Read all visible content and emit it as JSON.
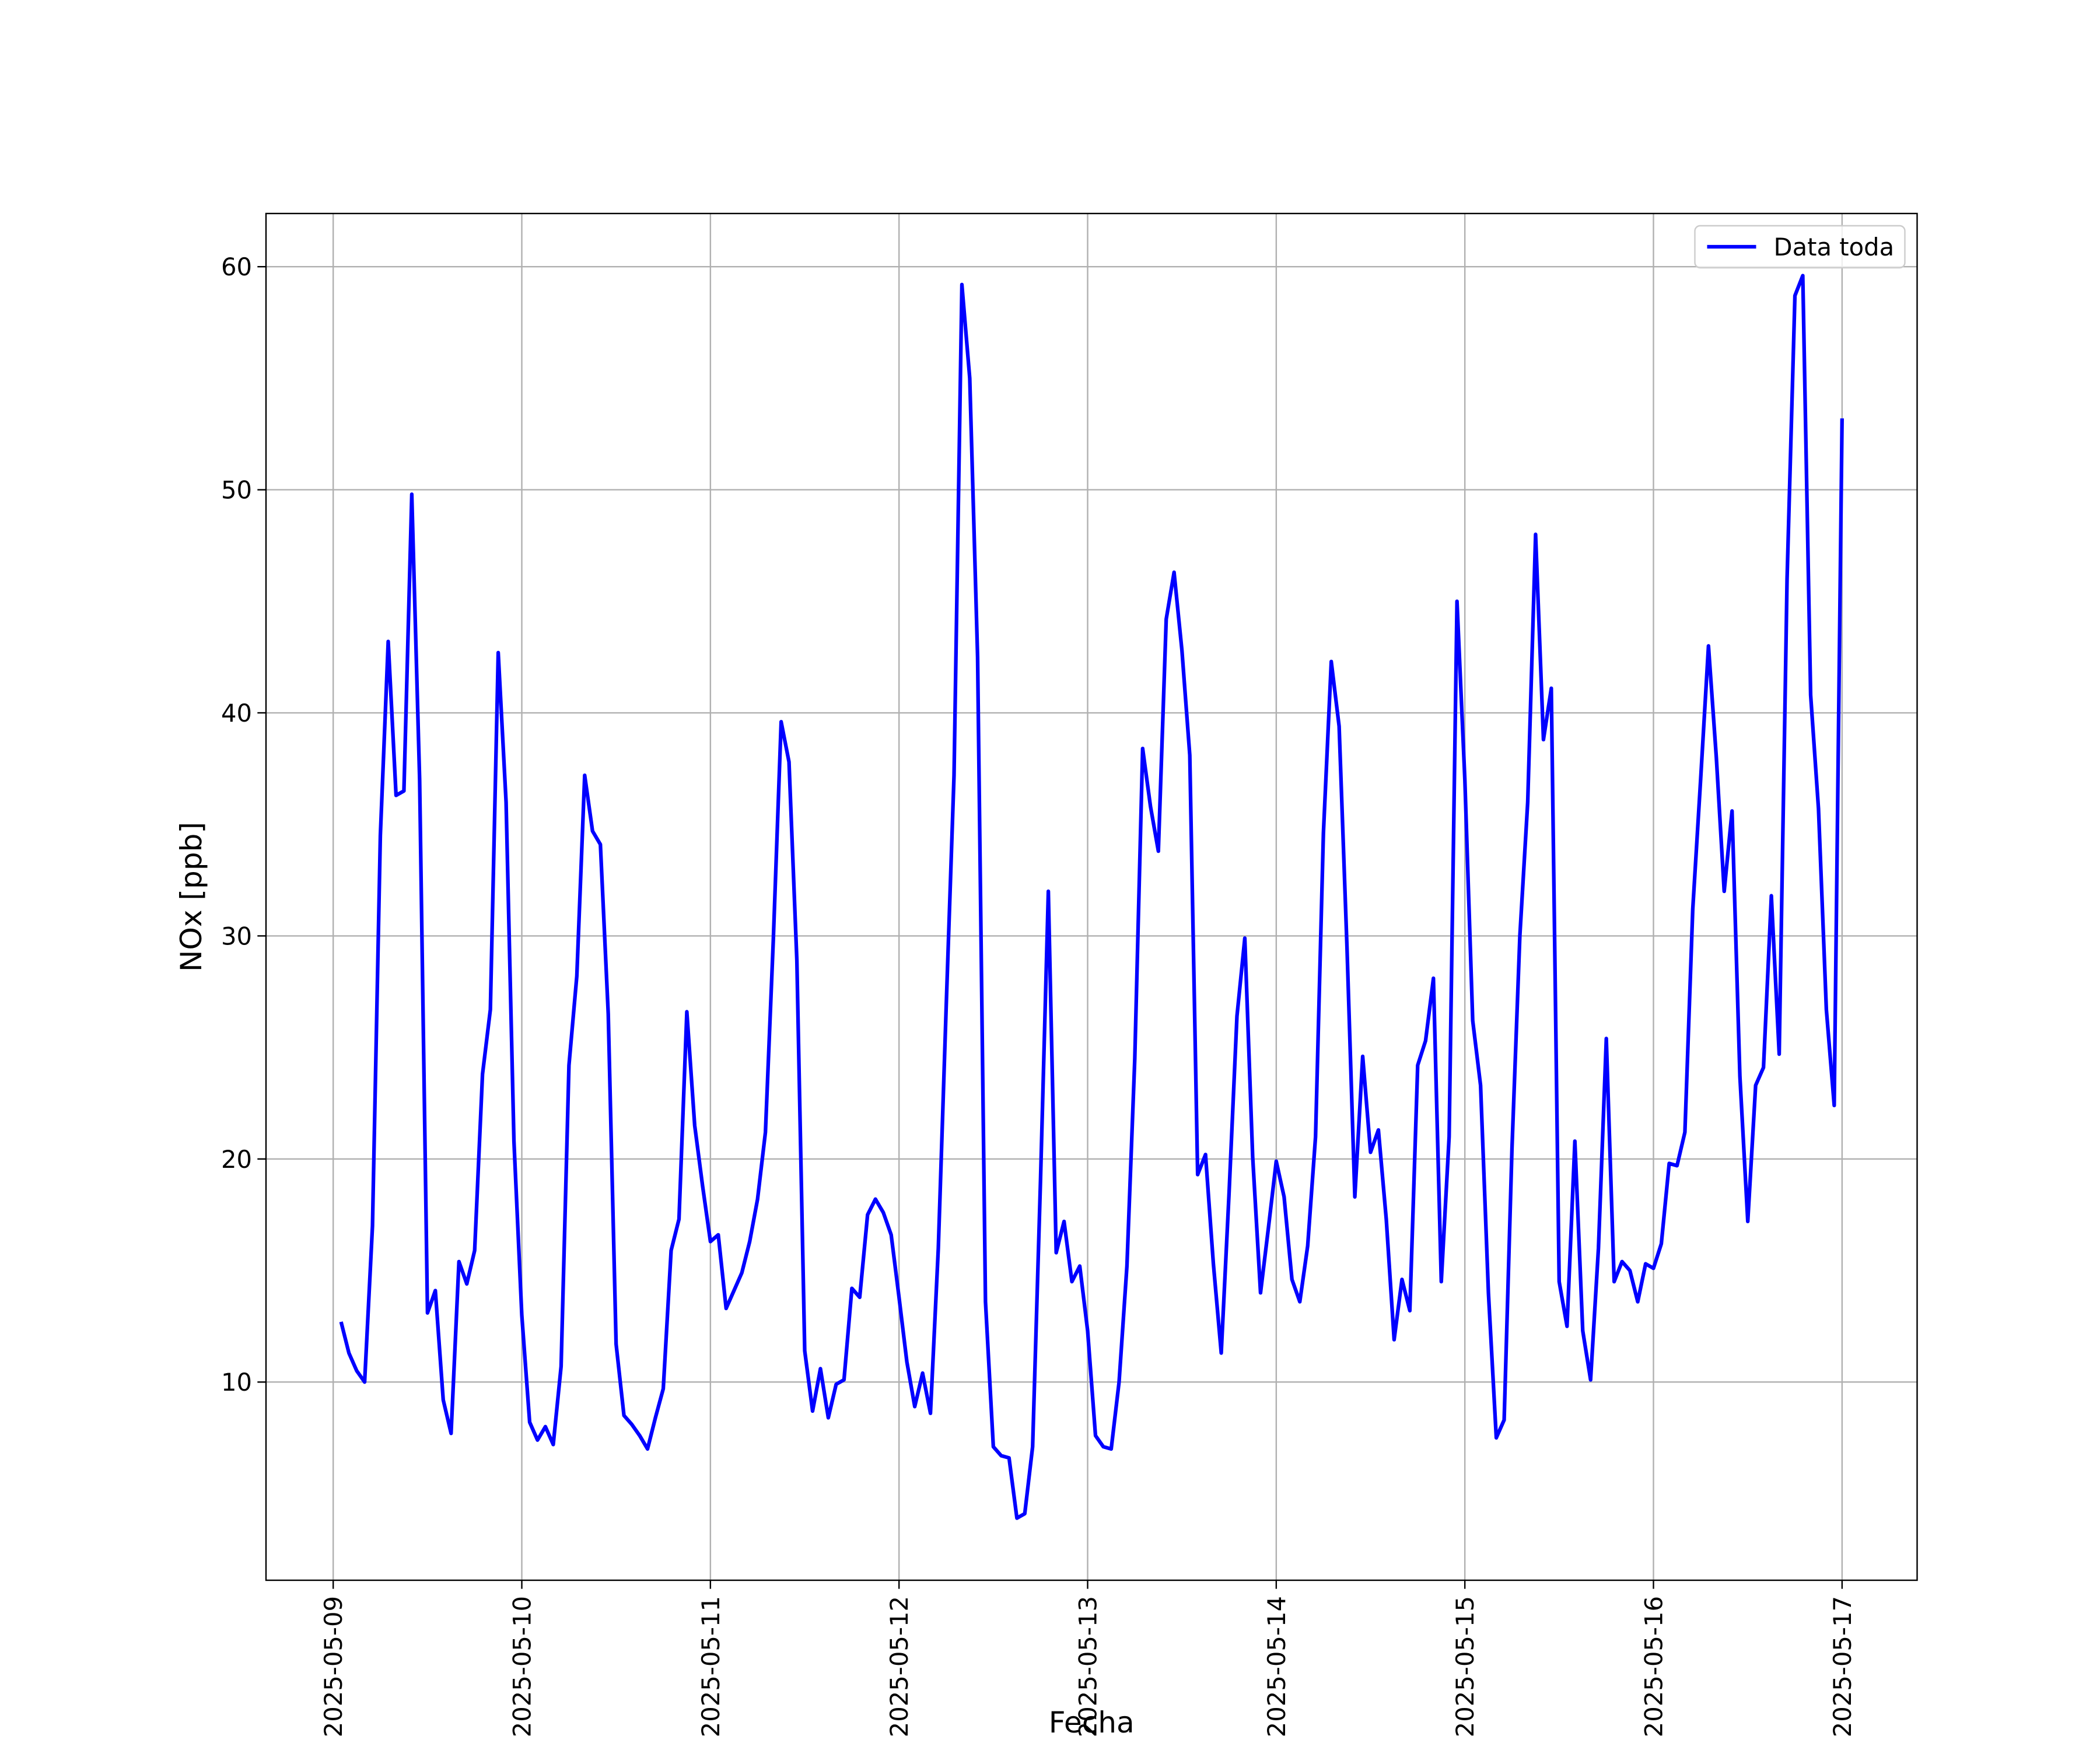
{
  "chart_data": {
    "type": "line",
    "x_label": "Fecha",
    "y_label": "NOx [ppb]",
    "x": [
      "2025-05-09 01:00",
      "2025-05-09 02:00",
      "2025-05-09 03:00",
      "2025-05-09 04:00",
      "2025-05-09 05:00",
      "2025-05-09 06:00",
      "2025-05-09 07:00",
      "2025-05-09 08:00",
      "2025-05-09 09:00",
      "2025-05-09 10:00",
      "2025-05-09 11:00",
      "2025-05-09 12:00",
      "2025-05-09 13:00",
      "2025-05-09 14:00",
      "2025-05-09 15:00",
      "2025-05-09 16:00",
      "2025-05-09 17:00",
      "2025-05-09 18:00",
      "2025-05-09 19:00",
      "2025-05-09 20:00",
      "2025-05-09 21:00",
      "2025-05-09 22:00",
      "2025-05-09 23:00",
      "2025-05-10 00:00",
      "2025-05-10 01:00",
      "2025-05-10 02:00",
      "2025-05-10 03:00",
      "2025-05-10 04:00",
      "2025-05-10 05:00",
      "2025-05-10 06:00",
      "2025-05-10 07:00",
      "2025-05-10 08:00",
      "2025-05-10 09:00",
      "2025-05-10 10:00",
      "2025-05-10 11:00",
      "2025-05-10 12:00",
      "2025-05-10 13:00",
      "2025-05-10 14:00",
      "2025-05-10 15:00",
      "2025-05-10 16:00",
      "2025-05-10 17:00",
      "2025-05-10 18:00",
      "2025-05-10 19:00",
      "2025-05-10 20:00",
      "2025-05-10 21:00",
      "2025-05-10 22:00",
      "2025-05-10 23:00",
      "2025-05-11 00:00",
      "2025-05-11 01:00",
      "2025-05-11 02:00",
      "2025-05-11 03:00",
      "2025-05-11 04:00",
      "2025-05-11 05:00",
      "2025-05-11 06:00",
      "2025-05-11 07:00",
      "2025-05-11 08:00",
      "2025-05-11 09:00",
      "2025-05-11 10:00",
      "2025-05-11 11:00",
      "2025-05-11 12:00",
      "2025-05-11 13:00",
      "2025-05-11 14:00",
      "2025-05-11 15:00",
      "2025-05-11 16:00",
      "2025-05-11 17:00",
      "2025-05-11 18:00",
      "2025-05-11 19:00",
      "2025-05-11 20:00",
      "2025-05-11 21:00",
      "2025-05-11 22:00",
      "2025-05-11 23:00",
      "2025-05-12 00:00",
      "2025-05-12 01:00",
      "2025-05-12 02:00",
      "2025-05-12 03:00",
      "2025-05-12 04:00",
      "2025-05-12 05:00",
      "2025-05-12 06:00",
      "2025-05-12 07:00",
      "2025-05-12 08:00",
      "2025-05-12 09:00",
      "2025-05-12 10:00",
      "2025-05-12 11:00",
      "2025-05-12 12:00",
      "2025-05-12 13:00",
      "2025-05-12 14:00",
      "2025-05-12 15:00",
      "2025-05-12 16:00",
      "2025-05-12 17:00",
      "2025-05-12 18:00",
      "2025-05-12 19:00",
      "2025-05-12 20:00",
      "2025-05-12 21:00",
      "2025-05-12 22:00",
      "2025-05-12 23:00",
      "2025-05-13 00:00",
      "2025-05-13 01:00",
      "2025-05-13 02:00",
      "2025-05-13 03:00",
      "2025-05-13 04:00",
      "2025-05-13 05:00",
      "2025-05-13 06:00",
      "2025-05-13 07:00",
      "2025-05-13 08:00",
      "2025-05-13 09:00",
      "2025-05-13 10:00",
      "2025-05-13 11:00",
      "2025-05-13 12:00",
      "2025-05-13 13:00",
      "2025-05-13 14:00",
      "2025-05-13 15:00",
      "2025-05-13 16:00",
      "2025-05-13 17:00",
      "2025-05-13 18:00",
      "2025-05-13 19:00",
      "2025-05-13 20:00",
      "2025-05-13 21:00",
      "2025-05-13 22:00",
      "2025-05-13 23:00",
      "2025-05-14 00:00",
      "2025-05-14 01:00",
      "2025-05-14 02:00",
      "2025-05-14 03:00",
      "2025-05-14 04:00",
      "2025-05-14 05:00",
      "2025-05-14 06:00",
      "2025-05-14 07:00",
      "2025-05-14 08:00",
      "2025-05-14 09:00",
      "2025-05-14 10:00",
      "2025-05-14 11:00",
      "2025-05-14 12:00",
      "2025-05-14 13:00",
      "2025-05-14 14:00",
      "2025-05-14 15:00",
      "2025-05-14 16:00",
      "2025-05-14 17:00",
      "2025-05-14 18:00",
      "2025-05-14 19:00",
      "2025-05-14 20:00",
      "2025-05-14 21:00",
      "2025-05-14 22:00",
      "2025-05-14 23:00",
      "2025-05-15 00:00",
      "2025-05-15 01:00",
      "2025-05-15 02:00",
      "2025-05-15 03:00",
      "2025-05-15 04:00",
      "2025-05-15 05:00",
      "2025-05-15 06:00",
      "2025-05-15 07:00",
      "2025-05-15 08:00",
      "2025-05-15 09:00",
      "2025-05-15 10:00",
      "2025-05-15 11:00",
      "2025-05-15 12:00",
      "2025-05-15 13:00",
      "2025-05-15 14:00",
      "2025-05-15 15:00",
      "2025-05-15 16:00",
      "2025-05-15 17:00",
      "2025-05-15 18:00",
      "2025-05-15 19:00",
      "2025-05-15 20:00",
      "2025-05-15 21:00",
      "2025-05-15 22:00",
      "2025-05-15 23:00",
      "2025-05-16 00:00",
      "2025-05-16 01:00",
      "2025-05-16 02:00",
      "2025-05-16 03:00",
      "2025-05-16 04:00",
      "2025-05-16 05:00",
      "2025-05-16 06:00",
      "2025-05-16 07:00",
      "2025-05-16 08:00",
      "2025-05-16 09:00",
      "2025-05-16 10:00",
      "2025-05-16 11:00",
      "2025-05-16 12:00",
      "2025-05-16 13:00",
      "2025-05-16 14:00",
      "2025-05-16 15:00",
      "2025-05-16 16:00",
      "2025-05-16 17:00",
      "2025-05-16 18:00",
      "2025-05-16 19:00",
      "2025-05-16 20:00",
      "2025-05-16 21:00",
      "2025-05-16 22:00",
      "2025-05-16 23:00",
      "2025-05-17 00:00"
    ],
    "series": [
      {
        "name": "Data toda",
        "color": "#0000ff",
        "values": [
          12.7,
          11.3,
          10.5,
          10.0,
          17,
          34.5,
          43.2,
          36.3,
          36.5,
          49.8,
          37,
          13.1,
          14.1,
          9.2,
          7.7,
          15.4,
          14.4,
          15.9,
          23.8,
          26.7,
          42.7,
          36,
          20.8,
          13,
          8.2,
          7.4,
          8.0,
          7.2,
          10.7,
          24.2,
          28.2,
          37.2,
          34.7,
          34.1,
          26.5,
          11.7,
          8.5,
          8.1,
          7.6,
          7.0,
          8.4,
          9.7,
          15.9,
          17.3,
          26.6,
          21.5,
          18.8,
          16.3,
          16.6,
          13.3,
          14.1,
          14.9,
          16.3,
          18.2,
          21.2,
          29.8,
          39.6,
          37.8,
          28.9,
          11.4,
          8.7,
          10.6,
          8.4,
          9.9,
          10.1,
          14.2,
          13.8,
          17.5,
          18.2,
          17.6,
          16.6,
          13.8,
          10.9,
          8.9,
          10.4,
          8.6,
          16,
          26.8,
          37.2,
          59.2,
          55,
          42.5,
          13.6,
          7.1,
          6.7,
          6.6,
          3.9,
          4.1,
          7.1,
          19,
          32,
          15.8,
          17.2,
          14.5,
          15.2,
          12.3,
          7.6,
          7.1,
          7.0,
          10,
          15.2,
          24.5,
          38.4,
          35.8,
          33.8,
          44.2,
          46.3,
          42.8,
          38.1,
          19.3,
          20.2,
          15.3,
          11.3,
          18.5,
          26.4,
          29.9,
          20.1,
          14.0,
          16.9,
          19.9,
          18.3,
          14.6,
          13.6,
          16.1,
          21,
          34.6,
          42.3,
          39.4,
          29.5,
          18.3,
          24.6,
          20.3,
          21.3,
          17.3,
          11.9,
          14.6,
          13.2,
          24.2,
          25.3,
          28.1,
          14.5,
          21,
          45,
          37,
          26.2,
          23.3,
          14,
          7.5,
          8.3,
          20.5,
          30,
          36,
          48,
          38.8,
          41.1,
          14.5,
          12.5,
          20.8,
          12.3,
          10.1,
          16,
          25.4,
          14.5,
          15.4,
          15,
          13.6,
          15.3,
          15.1,
          16.2,
          19.8,
          19.7,
          21.2,
          31.2,
          37,
          43,
          38,
          32,
          35.6,
          23.7,
          17.2,
          23.3,
          24.1,
          31.8,
          24.7,
          46,
          58.7,
          59.6,
          40.8,
          35.7,
          26.7,
          22.4,
          53.2
        ]
      }
    ],
    "xlim": [
      "2025-05-08 15:27",
      "2025-05-17 09:33"
    ],
    "xticks": [
      "2025-05-09",
      "2025-05-10",
      "2025-05-11",
      "2025-05-12",
      "2025-05-13",
      "2025-05-14",
      "2025-05-15",
      "2025-05-16",
      "2025-05-17"
    ],
    "ylim": [
      1.115,
      62.385
    ],
    "yticks": [
      10,
      20,
      30,
      40,
      50,
      60
    ],
    "grid": true,
    "legend": "upper right"
  }
}
